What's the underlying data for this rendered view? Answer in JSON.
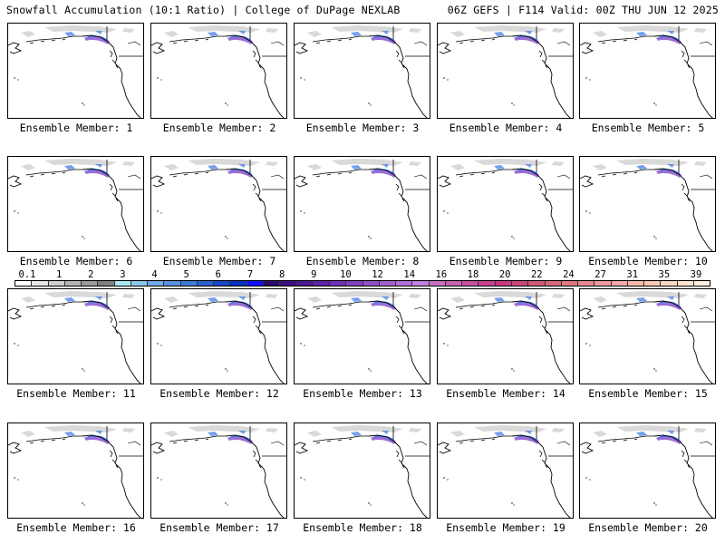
{
  "header": {
    "title": "Snowfall Accumulation (10:1 Ratio) | College of DuPage NEXLAB",
    "run_info": "06Z GEFS | F114 Valid: 00Z THU JUN 12 2025"
  },
  "members": [
    {
      "label": "Ensemble Member: 1"
    },
    {
      "label": "Ensemble Member: 2"
    },
    {
      "label": "Ensemble Member: 3"
    },
    {
      "label": "Ensemble Member: 4"
    },
    {
      "label": "Ensemble Member: 5"
    },
    {
      "label": "Ensemble Member: 6"
    },
    {
      "label": "Ensemble Member: 7"
    },
    {
      "label": "Ensemble Member: 8"
    },
    {
      "label": "Ensemble Member: 9"
    },
    {
      "label": "Ensemble Member: 10"
    },
    {
      "label": "Ensemble Member: 11"
    },
    {
      "label": "Ensemble Member: 12"
    },
    {
      "label": "Ensemble Member: 13"
    },
    {
      "label": "Ensemble Member: 14"
    },
    {
      "label": "Ensemble Member: 15"
    },
    {
      "label": "Ensemble Member: 16"
    },
    {
      "label": "Ensemble Member: 17"
    },
    {
      "label": "Ensemble Member: 18"
    },
    {
      "label": "Ensemble Member: 19"
    },
    {
      "label": "Ensemble Member: 20"
    }
  ],
  "colorbar": {
    "labels": [
      "0.1",
      "1",
      "2",
      "3",
      "4",
      "5",
      "6",
      "7",
      "8",
      "9",
      "10",
      "12",
      "14",
      "16",
      "18",
      "20",
      "22",
      "24",
      "27",
      "31",
      "35",
      "39"
    ],
    "colors": [
      "#ffffff",
      "#e6e6e6",
      "#cfcfcf",
      "#b4b4b4",
      "#9a9a9a",
      "#808080",
      "#a8e8f4",
      "#8cc8ee",
      "#70a8e6",
      "#5890e0",
      "#4078d8",
      "#2a60d0",
      "#1848c8",
      "#0a30c0",
      "#1010ff",
      "#2a0a6a",
      "#3c1080",
      "#4e1894",
      "#6020a8",
      "#7030b8",
      "#8040c0",
      "#9050c8",
      "#a060d0",
      "#b070d8",
      "#c080e0",
      "#c870c0",
      "#c860b0",
      "#c850a0",
      "#c84090",
      "#c83880",
      "#c84878",
      "#d05878",
      "#d86878",
      "#e07880",
      "#e88890",
      "#f098a0",
      "#f5a8a8",
      "#f7b8a8",
      "#f8c8b0",
      "#fad8c0",
      "#fce4d0",
      "#fdeee0"
    ]
  },
  "map_colors": {
    "light_snow": "#cfcfcf",
    "medium_snow": "#3c78e6",
    "heavy_snow": "#7a3cc8",
    "border": "#000000"
  }
}
